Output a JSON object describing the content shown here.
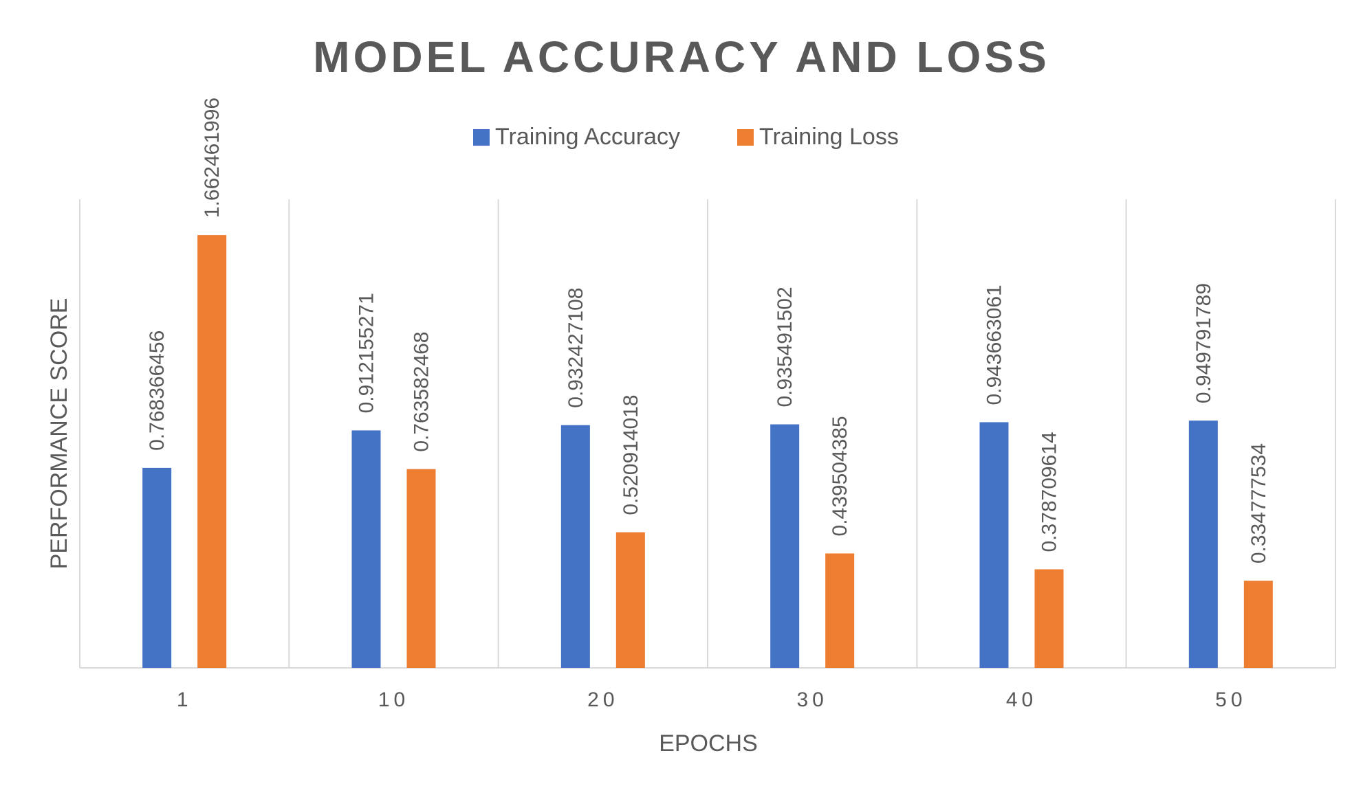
{
  "chart_data": {
    "type": "bar",
    "title": "MODEL ACCURACY AND LOSS",
    "xlabel": "EPOCHS",
    "ylabel": "PERFORMANCE SCORE",
    "categories": [
      "1",
      "10",
      "20",
      "30",
      "40",
      "50"
    ],
    "ylim": [
      0,
      1.8
    ],
    "grid": "vertical",
    "legend_position": "top",
    "series": [
      {
        "name": "Training Accuracy",
        "color": "#4472C4",
        "values": [
          0.768366456,
          0.912155271,
          0.932427108,
          0.935491502,
          0.943663061,
          0.949791789
        ],
        "labels": [
          "0.768366456",
          "0.912155271",
          "0.932427108",
          "0.935491502",
          "0.943663061",
          "0.949791789"
        ]
      },
      {
        "name": "Training Loss",
        "color": "#ED7D31",
        "values": [
          1.662461996,
          0.763582468,
          0.520914018,
          0.439504385,
          0.378709614,
          0.334777534
        ],
        "labels": [
          "1.662461996",
          "0.763582468",
          "0.520914018",
          "0.439504385",
          "0.378709614",
          "0.334777534"
        ]
      }
    ]
  }
}
